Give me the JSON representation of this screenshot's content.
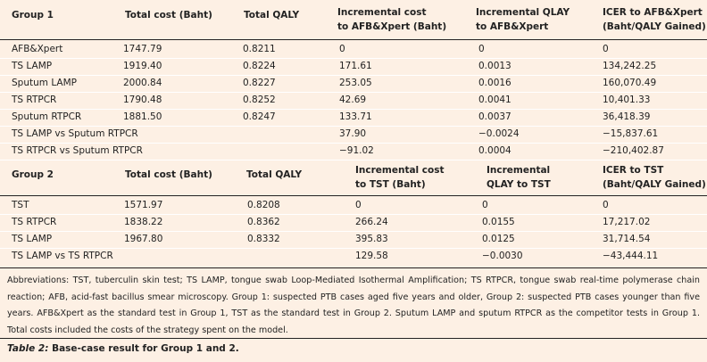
{
  "tables": [
    {
      "header": [
        [
          "Group 1"
        ],
        [
          "Total cost (Baht)"
        ],
        [
          "Total QALY"
        ],
        [
          "Incremental cost",
          "to AFB&Xpert (Baht)"
        ],
        [
          "Incremental QLAY",
          "to AFB&Xpert"
        ],
        [
          "ICER to AFB&Xpert",
          "(Baht/QALY Gained)"
        ]
      ],
      "rows": [
        [
          "AFB&Xpert",
          "1747.79",
          "0.8211",
          "0",
          "0",
          "0"
        ],
        [
          "TS LAMP",
          "1919.40",
          "0.8224",
          "171.61",
          "0.0013",
          "134,242.25"
        ],
        [
          "Sputum LAMP",
          "2000.84",
          "0.8227",
          "253.05",
          "0.0016",
          "160,070.49"
        ],
        [
          "TS RTPCR",
          "1790.48",
          "0.8252",
          "42.69",
          "0.0041",
          "10,401.33"
        ],
        [
          "Sputum RTPCR",
          "1881.50",
          "0.8247",
          "133.71",
          "0.0037",
          "36,418.39"
        ],
        [
          "TS LAMP vs Sputum RTPCR",
          null,
          null,
          "37.90",
          "−0.0024",
          "−15,837.61"
        ],
        [
          "TS RTPCR vs Sputum RTPCR",
          null,
          null,
          "−91.02",
          "0.0004",
          "−210,402.87"
        ]
      ]
    },
    {
      "header": [
        [
          "Group 2"
        ],
        [
          "Total cost (Baht)"
        ],
        [
          "Total QALY"
        ],
        [
          "Incremental cost",
          "to TST (Baht)"
        ],
        [
          "Incremental",
          "QLAY to TST"
        ],
        [
          "ICER to TST",
          "(Baht/QALY Gained)"
        ]
      ],
      "rows": [
        [
          "TST",
          "1571.97",
          "0.8208",
          "0",
          "0",
          "0"
        ],
        [
          "TS RTPCR",
          "1838.22",
          "0.8362",
          "266.24",
          "0.0155",
          "17,217.02"
        ],
        [
          "TS LAMP",
          "1967.80",
          "0.8332",
          "395.83",
          "0.0125",
          "31,714.54"
        ],
        [
          "TS LAMP vs TS RTPCR",
          null,
          null,
          "129.58",
          "−0.0030",
          "−43,444.11"
        ]
      ]
    }
  ],
  "footnote": "Abbreviations: TST, tuberculin skin test; TS LAMP, tongue swab Loop-Mediated Isothermal Amplification; TS RTPCR, tongue swab real-time polymerase chain reaction; AFB, acid-fast bacillus smear microscopy. Group 1: suspected PTB cases aged five years and older, Group 2: suspected PTB cases younger than five years. AFB&Xpert as the standard test in Group 1, TST as the standard test in Group 2. Sputum LAMP and sputum RTPCR as the competitor tests in Group 1. Total costs included the costs of the strategy spent on the model.",
  "caption": {
    "label": "Table 2:",
    "text": "Base-case result for Group 1 and 2."
  }
}
